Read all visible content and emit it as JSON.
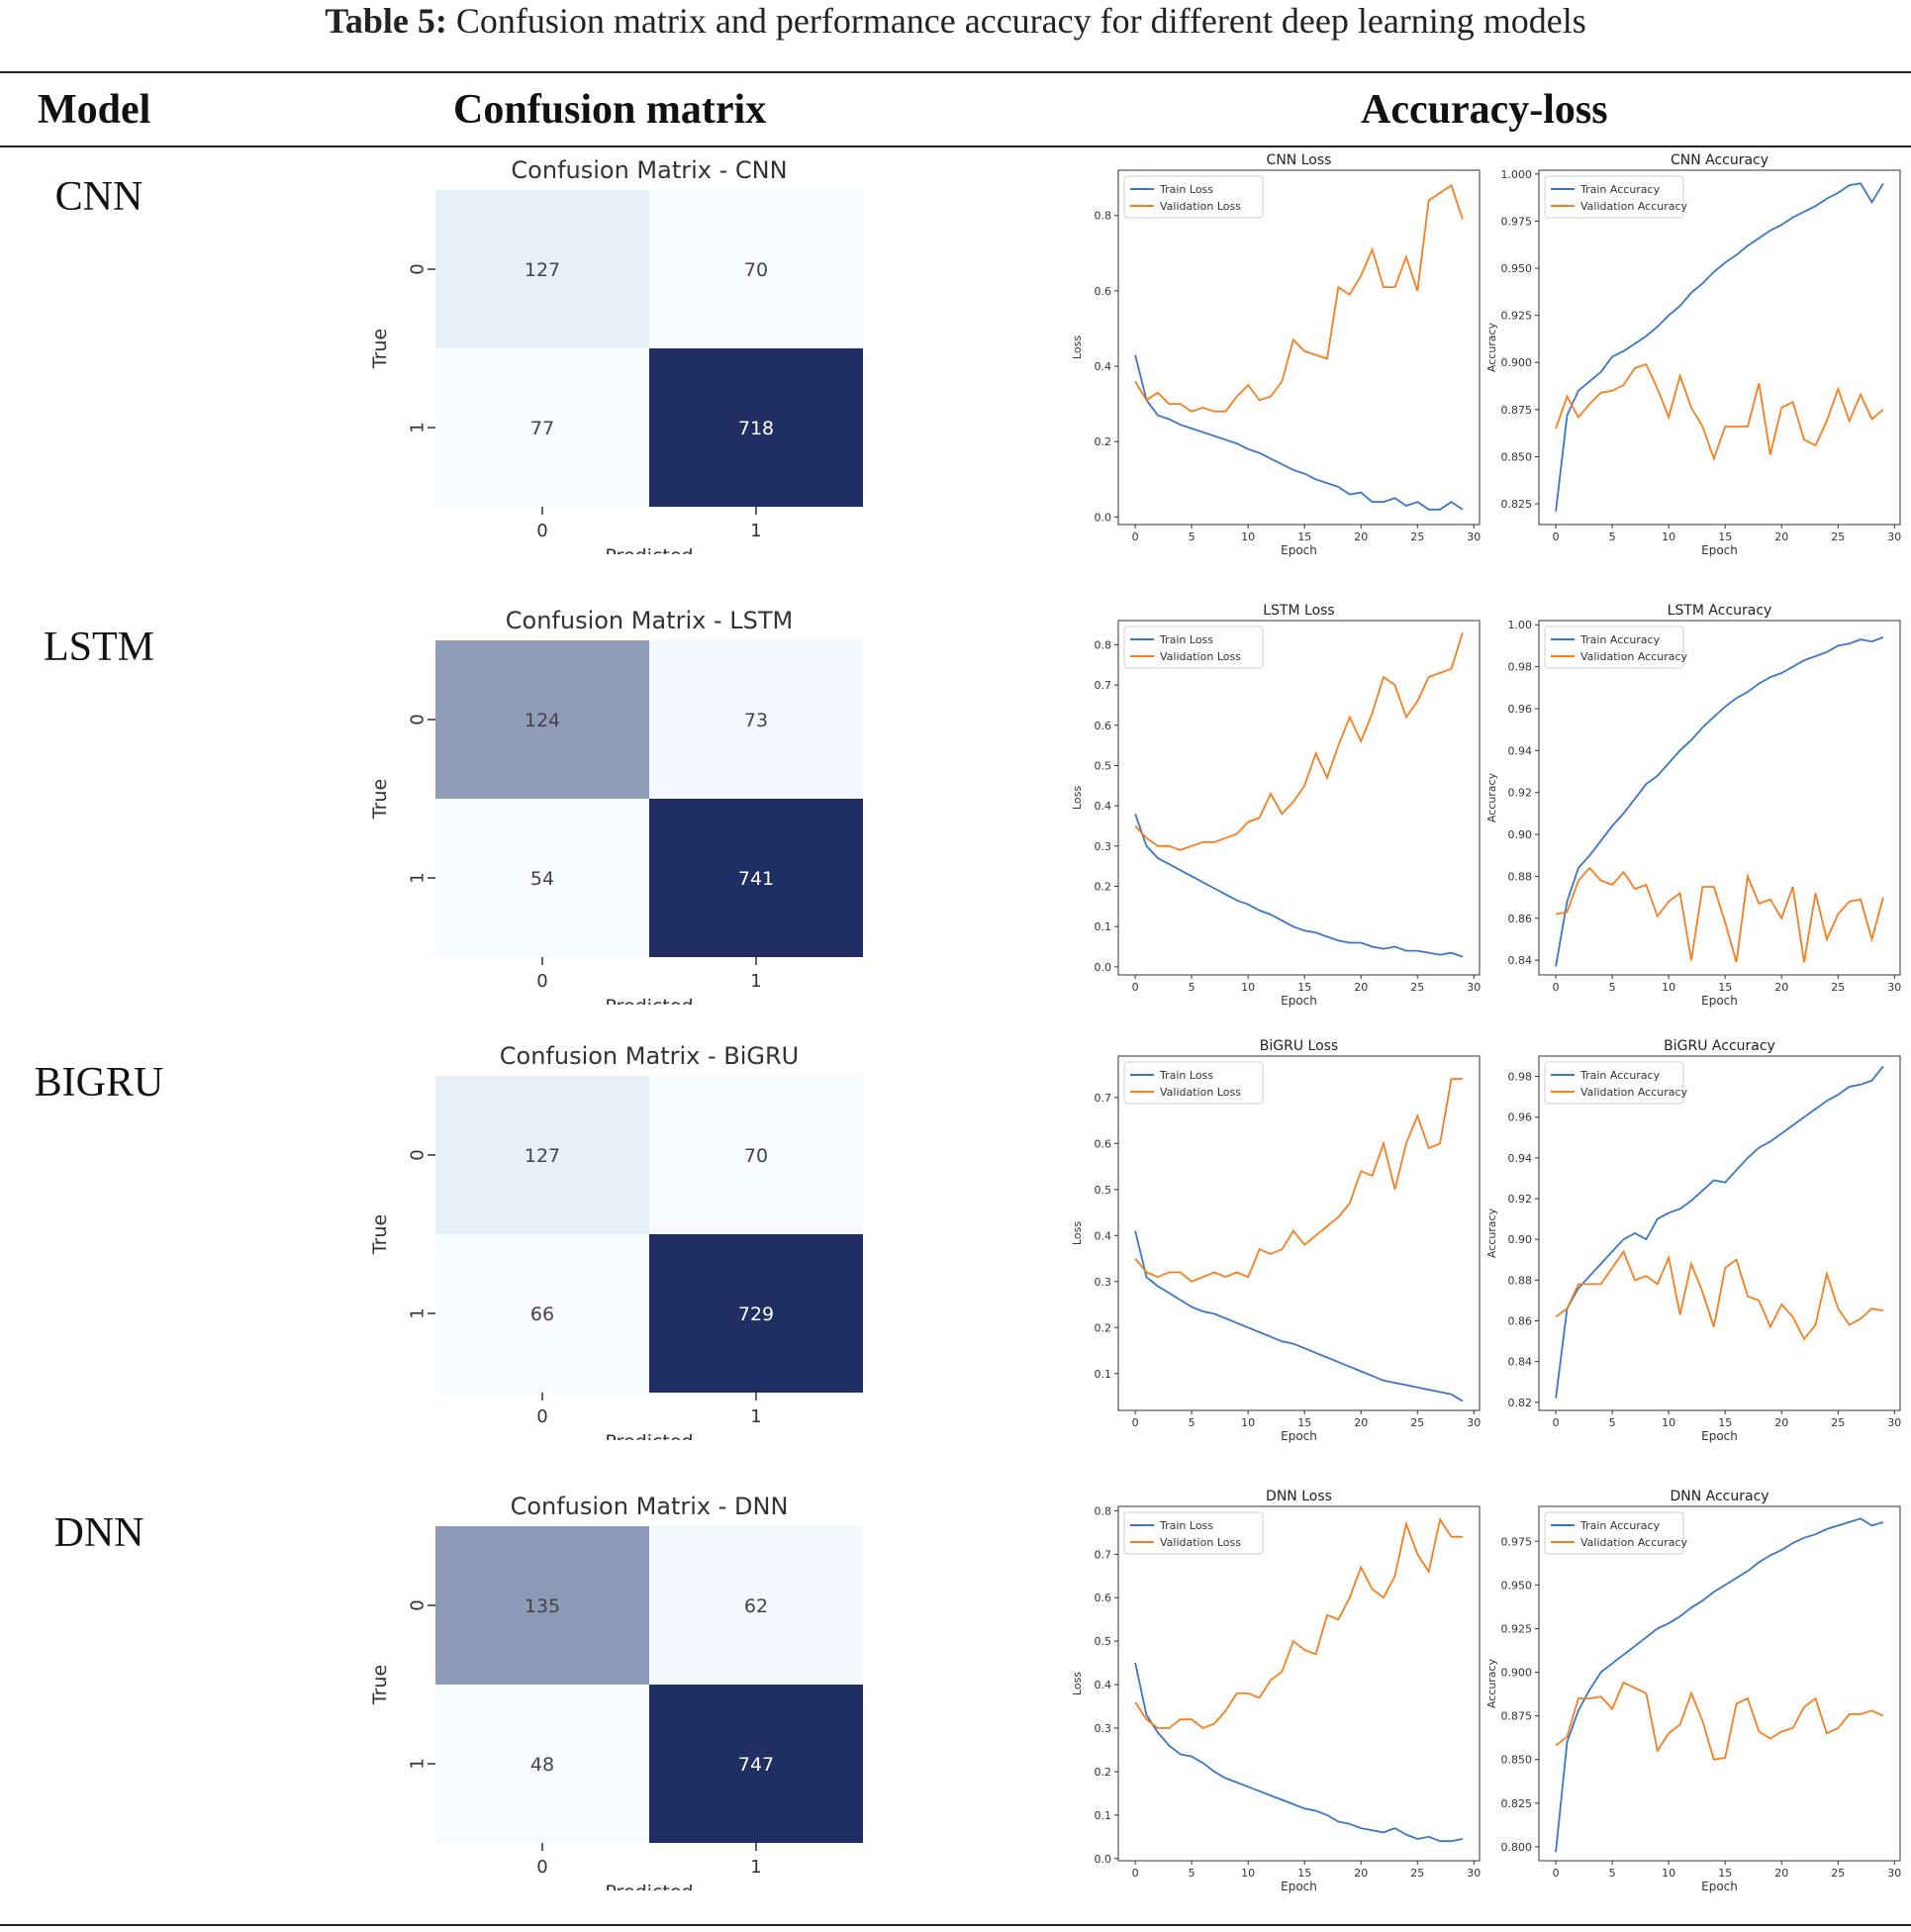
{
  "caption": {
    "label": "Table 5:",
    "text": "Confusion matrix and performance accuracy for different deep learning models"
  },
  "headers": {
    "model": "Model",
    "confusion": "Confusion matrix",
    "accloss": "Accuracy-loss"
  },
  "rows": [
    {
      "model": "CNN",
      "cm": {
        "title": "Confusion Matrix - CNN",
        "values": [
          [
            127,
            70
          ],
          [
            77,
            718
          ]
        ],
        "ylabel": "True",
        "xlabel": "Predicted",
        "ticks": [
          "0",
          "1"
        ]
      },
      "loss": {
        "title": "CNN Loss",
        "xlabel": "Epoch",
        "ylabel": "Loss",
        "ylim": [
          -0.02,
          0.92
        ],
        "yticks": [
          0.0,
          0.2,
          0.4,
          0.6,
          0.8
        ],
        "ytick_decimals": 1,
        "legend": [
          "Train Loss",
          "Validation Loss"
        ],
        "train": [
          0.43,
          0.31,
          0.27,
          0.26,
          0.245,
          0.235,
          0.225,
          0.215,
          0.205,
          0.195,
          0.18,
          0.17,
          0.155,
          0.14,
          0.125,
          0.115,
          0.1,
          0.09,
          0.08,
          0.06,
          0.065,
          0.04,
          0.04,
          0.05,
          0.03,
          0.04,
          0.02,
          0.02,
          0.04,
          0.02
        ],
        "val": [
          0.36,
          0.31,
          0.33,
          0.3,
          0.3,
          0.28,
          0.29,
          0.28,
          0.28,
          0.32,
          0.35,
          0.31,
          0.32,
          0.36,
          0.47,
          0.44,
          0.43,
          0.42,
          0.61,
          0.59,
          0.64,
          0.71,
          0.61,
          0.61,
          0.69,
          0.6,
          0.84,
          0.86,
          0.88,
          0.79
        ]
      },
      "acc": {
        "title": "CNN Accuracy",
        "xlabel": "Epoch",
        "ylabel": "Accuracy",
        "ylim": [
          0.814,
          1.002
        ],
        "yticks": [
          0.825,
          0.85,
          0.875,
          0.9,
          0.925,
          0.95,
          0.975,
          1.0
        ],
        "ytick_decimals": 3,
        "legend": [
          "Train Accuracy",
          "Validation Accuracy"
        ],
        "train": [
          0.821,
          0.872,
          0.885,
          0.89,
          0.895,
          0.903,
          0.906,
          0.91,
          0.914,
          0.919,
          0.925,
          0.93,
          0.937,
          0.942,
          0.948,
          0.953,
          0.957,
          0.962,
          0.966,
          0.97,
          0.973,
          0.977,
          0.98,
          0.983,
          0.987,
          0.99,
          0.994,
          0.995,
          0.985,
          0.995
        ],
        "val": [
          0.865,
          0.882,
          0.871,
          0.878,
          0.884,
          0.885,
          0.888,
          0.897,
          0.899,
          0.886,
          0.871,
          0.893,
          0.876,
          0.866,
          0.849,
          0.866,
          0.866,
          0.866,
          0.889,
          0.851,
          0.876,
          0.879,
          0.859,
          0.856,
          0.869,
          0.886,
          0.869,
          0.883,
          0.87,
          0.875
        ]
      }
    },
    {
      "model": "LSTM",
      "cm": {
        "title": "Confusion Matrix - LSTM",
        "values": [
          [
            124,
            73
          ],
          [
            54,
            741
          ]
        ],
        "ylabel": "True",
        "xlabel": "Predicted",
        "ticks": [
          "0",
          "1"
        ]
      },
      "loss": {
        "title": "LSTM Loss",
        "xlabel": "Epoch",
        "ylabel": "Loss",
        "ylim": [
          -0.02,
          0.86
        ],
        "yticks": [
          0.0,
          0.1,
          0.2,
          0.3,
          0.4,
          0.5,
          0.6,
          0.7,
          0.8
        ],
        "ytick_decimals": 1,
        "legend": [
          "Train Loss",
          "Validation Loss"
        ],
        "train": [
          0.38,
          0.3,
          0.27,
          0.255,
          0.24,
          0.225,
          0.21,
          0.195,
          0.18,
          0.165,
          0.155,
          0.14,
          0.13,
          0.115,
          0.1,
          0.09,
          0.085,
          0.075,
          0.065,
          0.06,
          0.06,
          0.05,
          0.045,
          0.05,
          0.04,
          0.04,
          0.035,
          0.03,
          0.035,
          0.025
        ],
        "val": [
          0.35,
          0.32,
          0.3,
          0.3,
          0.29,
          0.3,
          0.31,
          0.31,
          0.32,
          0.33,
          0.36,
          0.37,
          0.43,
          0.38,
          0.41,
          0.45,
          0.53,
          0.47,
          0.55,
          0.62,
          0.56,
          0.63,
          0.72,
          0.7,
          0.62,
          0.66,
          0.72,
          0.73,
          0.74,
          0.83
        ]
      },
      "acc": {
        "title": "LSTM Accuracy",
        "xlabel": "Epoch",
        "ylabel": "Accuracy",
        "ylim": [
          0.833,
          1.002
        ],
        "yticks": [
          0.84,
          0.86,
          0.88,
          0.9,
          0.92,
          0.94,
          0.96,
          0.98,
          1.0
        ],
        "ytick_decimals": 2,
        "legend": [
          "Train Accuracy",
          "Validation Accuracy"
        ],
        "train": [
          0.837,
          0.868,
          0.884,
          0.89,
          0.897,
          0.904,
          0.91,
          0.917,
          0.924,
          0.928,
          0.934,
          0.94,
          0.945,
          0.951,
          0.956,
          0.961,
          0.965,
          0.968,
          0.972,
          0.975,
          0.977,
          0.98,
          0.983,
          0.985,
          0.987,
          0.99,
          0.991,
          0.993,
          0.992,
          0.994
        ],
        "val": [
          0.862,
          0.863,
          0.878,
          0.884,
          0.878,
          0.876,
          0.882,
          0.874,
          0.876,
          0.861,
          0.868,
          0.872,
          0.84,
          0.875,
          0.875,
          0.858,
          0.839,
          0.88,
          0.867,
          0.869,
          0.86,
          0.875,
          0.839,
          0.872,
          0.85,
          0.862,
          0.868,
          0.869,
          0.85,
          0.87
        ]
      }
    },
    {
      "model": "BIGRU",
      "cm": {
        "title": "Confusion Matrix - BiGRU",
        "values": [
          [
            127,
            70
          ],
          [
            66,
            729
          ]
        ],
        "ylabel": "True",
        "xlabel": "Predicted",
        "ticks": [
          "0",
          "1"
        ]
      },
      "loss": {
        "title": "BiGRU Loss",
        "xlabel": "Epoch",
        "ylabel": "Loss",
        "ylim": [
          0.02,
          0.79
        ],
        "yticks": [
          0.1,
          0.2,
          0.3,
          0.4,
          0.5,
          0.6,
          0.7
        ],
        "ytick_decimals": 1,
        "legend": [
          "Train Loss",
          "Validation Loss"
        ],
        "train": [
          0.41,
          0.31,
          0.29,
          0.275,
          0.26,
          0.245,
          0.235,
          0.23,
          0.22,
          0.21,
          0.2,
          0.19,
          0.18,
          0.17,
          0.165,
          0.155,
          0.145,
          0.135,
          0.125,
          0.115,
          0.105,
          0.095,
          0.085,
          0.08,
          0.075,
          0.07,
          0.065,
          0.06,
          0.055,
          0.04
        ],
        "val": [
          0.35,
          0.32,
          0.31,
          0.32,
          0.32,
          0.3,
          0.31,
          0.32,
          0.31,
          0.32,
          0.31,
          0.37,
          0.36,
          0.37,
          0.41,
          0.38,
          0.4,
          0.42,
          0.44,
          0.47,
          0.54,
          0.53,
          0.6,
          0.5,
          0.6,
          0.66,
          0.59,
          0.6,
          0.74,
          0.74
        ]
      },
      "acc": {
        "title": "BiGRU Accuracy",
        "xlabel": "Epoch",
        "ylabel": "Accuracy",
        "ylim": [
          0.816,
          0.99
        ],
        "yticks": [
          0.82,
          0.84,
          0.86,
          0.88,
          0.9,
          0.92,
          0.94,
          0.96,
          0.98
        ],
        "ytick_decimals": 2,
        "legend": [
          "Train Accuracy",
          "Validation Accuracy"
        ],
        "train": [
          0.822,
          0.866,
          0.876,
          0.882,
          0.888,
          0.894,
          0.9,
          0.903,
          0.9,
          0.91,
          0.913,
          0.915,
          0.919,
          0.924,
          0.929,
          0.928,
          0.934,
          0.94,
          0.945,
          0.948,
          0.952,
          0.956,
          0.96,
          0.964,
          0.968,
          0.971,
          0.975,
          0.976,
          0.978,
          0.985
        ],
        "val": [
          0.862,
          0.866,
          0.878,
          0.878,
          0.878,
          0.886,
          0.894,
          0.88,
          0.882,
          0.878,
          0.891,
          0.863,
          0.888,
          0.874,
          0.857,
          0.886,
          0.89,
          0.872,
          0.87,
          0.857,
          0.868,
          0.862,
          0.851,
          0.858,
          0.883,
          0.866,
          0.858,
          0.861,
          0.866,
          0.865
        ]
      }
    },
    {
      "model": "DNN",
      "cm": {
        "title": "Confusion Matrix - DNN",
        "values": [
          [
            135,
            62
          ],
          [
            48,
            747
          ]
        ],
        "ylabel": "True",
        "xlabel": "Predicted",
        "ticks": [
          "0",
          "1"
        ]
      },
      "loss": {
        "title": "DNN Loss",
        "xlabel": "Epoch",
        "ylabel": "Loss",
        "ylim": [
          -0.005,
          0.81
        ],
        "yticks": [
          0.0,
          0.1,
          0.2,
          0.3,
          0.4,
          0.5,
          0.6,
          0.7,
          0.8
        ],
        "ytick_decimals": 1,
        "legend": [
          "Train Loss",
          "Validation Loss"
        ],
        "train": [
          0.45,
          0.33,
          0.29,
          0.26,
          0.24,
          0.235,
          0.22,
          0.2,
          0.185,
          0.175,
          0.165,
          0.155,
          0.145,
          0.135,
          0.125,
          0.115,
          0.11,
          0.1,
          0.085,
          0.08,
          0.07,
          0.065,
          0.06,
          0.07,
          0.055,
          0.045,
          0.05,
          0.04,
          0.04,
          0.045
        ],
        "val": [
          0.36,
          0.32,
          0.3,
          0.3,
          0.32,
          0.32,
          0.3,
          0.31,
          0.34,
          0.38,
          0.38,
          0.37,
          0.41,
          0.43,
          0.5,
          0.48,
          0.47,
          0.56,
          0.55,
          0.6,
          0.67,
          0.62,
          0.6,
          0.65,
          0.77,
          0.7,
          0.66,
          0.78,
          0.74,
          0.74
        ]
      },
      "acc": {
        "title": "DNN Accuracy",
        "xlabel": "Epoch",
        "ylabel": "Accuracy",
        "ylim": [
          0.792,
          0.995
        ],
        "yticks": [
          0.8,
          0.825,
          0.85,
          0.875,
          0.9,
          0.925,
          0.95,
          0.975
        ],
        "ytick_decimals": 3,
        "legend": [
          "Train Accuracy",
          "Validation Accuracy"
        ],
        "train": [
          0.797,
          0.86,
          0.878,
          0.89,
          0.9,
          0.905,
          0.91,
          0.915,
          0.92,
          0.925,
          0.928,
          0.932,
          0.937,
          0.941,
          0.946,
          0.95,
          0.954,
          0.958,
          0.963,
          0.967,
          0.97,
          0.974,
          0.977,
          0.979,
          0.982,
          0.984,
          0.986,
          0.988,
          0.984,
          0.986
        ],
        "val": [
          0.858,
          0.863,
          0.885,
          0.885,
          0.886,
          0.879,
          0.894,
          0.891,
          0.888,
          0.855,
          0.865,
          0.87,
          0.888,
          0.872,
          0.85,
          0.851,
          0.882,
          0.885,
          0.866,
          0.862,
          0.866,
          0.868,
          0.88,
          0.885,
          0.865,
          0.868,
          0.876,
          0.876,
          0.878,
          0.875
        ]
      }
    }
  ],
  "colors": {
    "train": "#3b76c4",
    "val": "#f57f20",
    "cm_low": "#f7fbff",
    "cm_mid": "#deebf7",
    "cm_high": "#1f2f63"
  }
}
